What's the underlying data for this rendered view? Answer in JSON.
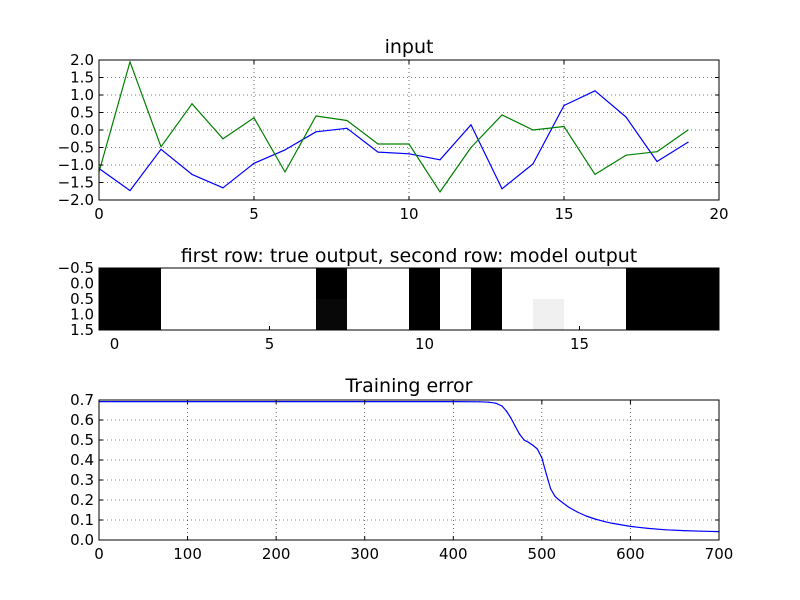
{
  "chart_data": [
    {
      "type": "line",
      "title": "input",
      "xlabel": "",
      "ylabel": "",
      "xlim": [
        0,
        20
      ],
      "ylim": [
        -2.0,
        2.0
      ],
      "xticks": [
        "0",
        "5",
        "10",
        "15",
        "20"
      ],
      "yticks": [
        "2.0",
        "1.5",
        "1.0",
        "0.5",
        "0.0",
        "−0.5",
        "−1.0",
        "−1.5",
        "−2.0"
      ],
      "grid": true,
      "x": [
        0,
        1,
        2,
        3,
        4,
        5,
        6,
        7,
        8,
        9,
        10,
        11,
        12,
        13,
        14,
        15,
        16,
        17,
        18,
        19
      ],
      "series": [
        {
          "color": "#0000ff",
          "values": [
            -1.1,
            -1.73,
            -0.55,
            -1.27,
            -1.65,
            -0.95,
            -0.57,
            -0.05,
            0.05,
            -0.63,
            -0.68,
            -0.85,
            0.15,
            -1.68,
            -0.97,
            0.7,
            1.12,
            0.37,
            -0.9,
            -0.35
          ]
        },
        {
          "color": "#008000",
          "values": [
            -1.2,
            1.95,
            -0.48,
            0.75,
            -0.25,
            0.35,
            -1.2,
            0.4,
            0.27,
            -0.4,
            -0.4,
            -1.77,
            -0.5,
            0.43,
            0.0,
            0.1,
            -1.27,
            -0.72,
            -0.62,
            0.0
          ]
        }
      ]
    },
    {
      "type": "heatmap",
      "title": "first row: true output, second row: model output",
      "xticks": [
        "0",
        "5",
        "10",
        "15"
      ],
      "yticks": [
        "−0.5",
        "0.0",
        "0.5",
        "1.0",
        "1.5"
      ],
      "xlim": [
        -0.5,
        19.5
      ],
      "ylim": [
        1.5,
        -0.5
      ],
      "colormap": "gray_r",
      "rows": [
        [
          1,
          1,
          0,
          0,
          0,
          0,
          0,
          1,
          0,
          0,
          1,
          0,
          1,
          0,
          0,
          0,
          0,
          1,
          1,
          1
        ],
        [
          1,
          1,
          0,
          0,
          0,
          0,
          0,
          0.97,
          0,
          0,
          1,
          0,
          1,
          0,
          0.06,
          0,
          0,
          1,
          1,
          1
        ]
      ]
    },
    {
      "type": "line",
      "title": "Training error",
      "xlabel": "",
      "ylabel": "",
      "xlim": [
        0,
        700
      ],
      "ylim": [
        0,
        0.7
      ],
      "xticks": [
        "0",
        "100",
        "200",
        "300",
        "400",
        "500",
        "600",
        "700"
      ],
      "yticks": [
        "0.7",
        "0.6",
        "0.5",
        "0.4",
        "0.3",
        "0.2",
        "0.1",
        "0.0"
      ],
      "grid": true,
      "series": [
        {
          "color": "#0000ff",
          "x": [
            0,
            100,
            200,
            300,
            400,
            430,
            440,
            448,
            455,
            460,
            465,
            470,
            475,
            480,
            485,
            490,
            495,
            500,
            505,
            510,
            515,
            520,
            530,
            540,
            550,
            560,
            570,
            580,
            600,
            620,
            640,
            660,
            680,
            700
          ],
          "values": [
            0.692,
            0.692,
            0.692,
            0.692,
            0.692,
            0.691,
            0.689,
            0.684,
            0.67,
            0.645,
            0.61,
            0.568,
            0.528,
            0.5,
            0.488,
            0.473,
            0.455,
            0.41,
            0.33,
            0.255,
            0.218,
            0.198,
            0.165,
            0.14,
            0.12,
            0.105,
            0.093,
            0.083,
            0.068,
            0.058,
            0.051,
            0.047,
            0.044,
            0.042
          ]
        }
      ]
    }
  ]
}
